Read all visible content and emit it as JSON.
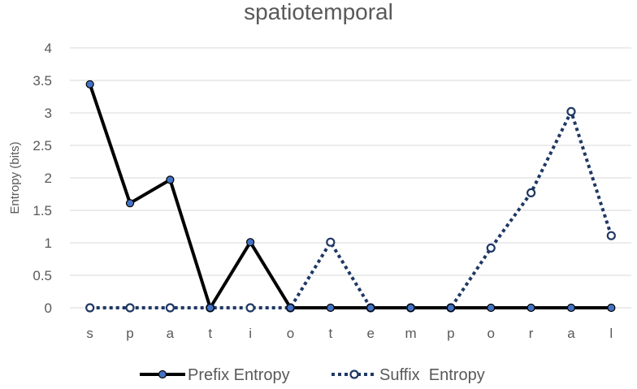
{
  "chart_data": {
    "type": "line",
    "title": "spatiotemporal",
    "xlabel": "",
    "ylabel": "Entropy (bits)",
    "categories": [
      "s",
      "p",
      "a",
      "t",
      "i",
      "o",
      "t",
      "e",
      "m",
      "p",
      "o",
      "r",
      "a",
      "l"
    ],
    "ylim": [
      0,
      4
    ],
    "yticks": [
      "0",
      "0.5",
      "1",
      "1.5",
      "2",
      "2.5",
      "3",
      "3.5",
      "4"
    ],
    "grid": true,
    "legend_position": "bottom",
    "series": [
      {
        "name": "Prefix Entropy",
        "style": "solid",
        "color": "#000000",
        "marker_color": "#4472c4",
        "values": [
          3.44,
          1.61,
          1.97,
          0,
          1.01,
          0,
          0,
          0,
          0,
          0,
          0,
          0,
          0,
          0
        ]
      },
      {
        "name": "Suffix  Entropy",
        "style": "dotted",
        "color": "#1f3864",
        "marker_color": "#ffffff",
        "values": [
          0,
          0,
          0,
          0,
          0,
          0,
          1.01,
          0,
          0,
          0,
          0.92,
          1.77,
          3.02,
          1.11
        ]
      }
    ]
  }
}
